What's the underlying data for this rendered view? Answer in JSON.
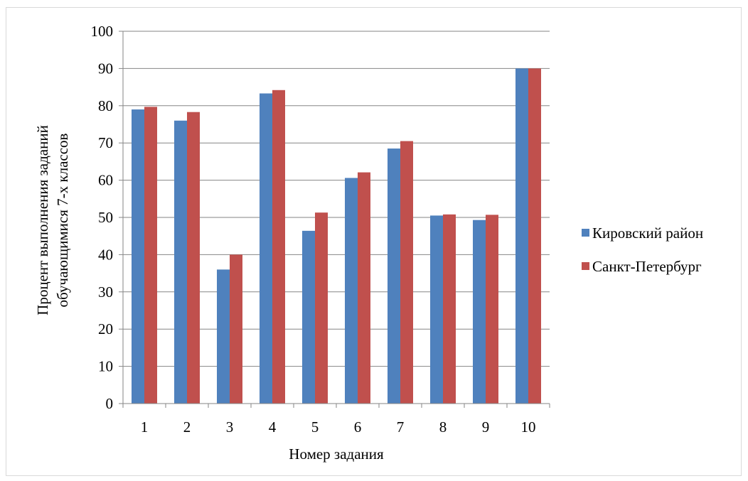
{
  "chart_data": {
    "type": "bar",
    "categories": [
      "1",
      "2",
      "3",
      "4",
      "5",
      "6",
      "7",
      "8",
      "9",
      "10"
    ],
    "series": [
      {
        "name": "Кировский район",
        "color": "#4f81bd",
        "values": [
          79,
          76,
          36,
          83.3,
          46.4,
          60.6,
          68.5,
          50.5,
          49.3,
          90
        ]
      },
      {
        "name": "Санкт-Петербург",
        "color": "#c0504d",
        "values": [
          79.7,
          78.3,
          40,
          84.2,
          51.3,
          62.1,
          70.5,
          50.8,
          50.7,
          90
        ]
      }
    ],
    "xlabel": "Номер  задания",
    "ylabel_line1": "Процент  выполнения  заданий",
    "ylabel_line2": "обучающимися 7-х классов",
    "ylim": [
      0,
      100
    ],
    "y_ticks": [
      "0",
      "10",
      "20",
      "30",
      "40",
      "50",
      "60",
      "70",
      "80",
      "90",
      "100"
    ],
    "grid": true,
    "legend_position": "right"
  }
}
